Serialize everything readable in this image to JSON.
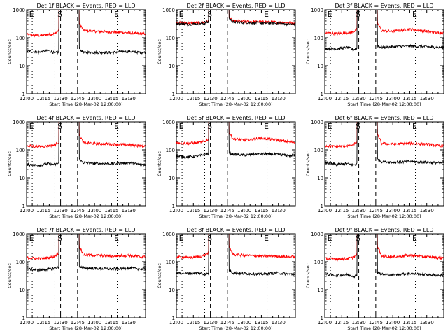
{
  "chart_data": [
    {
      "type": "line",
      "title": "Det 1f BLACK = Events, RED = LLD",
      "xlabel": "Start Time (28-Mar-02 12:00:00)",
      "ylabel": "Counts/sec",
      "yscale": "log",
      "ylim": [
        1,
        1000
      ],
      "xlim": [
        "12:00",
        "13:45"
      ],
      "xticks": [
        "12:00",
        "12:15",
        "12:30",
        "12:45",
        "13:00",
        "13:15",
        "13:30"
      ],
      "yticks": [
        "1",
        "10",
        "100",
        "1000"
      ],
      "markers": [
        {
          "label": "E",
          "time": "12:05",
          "line": "dotted"
        },
        {
          "label": "S",
          "time": "12:30",
          "line": "dashed"
        },
        {
          "label": "E",
          "time": "13:20",
          "line": "dotted"
        }
      ],
      "dashed_lines": [
        "12:30",
        "12:45"
      ],
      "dotted_lines": [
        "12:05",
        "12:25",
        "13:20"
      ],
      "series": [
        {
          "name": "RED",
          "color": "#ff0000",
          "x": [
            "12:00",
            "12:10",
            "12:20",
            "12:25",
            "12:45",
            "12:50",
            "13:00",
            "13:15",
            "13:30",
            "13:40"
          ],
          "y": [
            130,
            120,
            130,
            140,
            400,
            180,
            170,
            160,
            150,
            140
          ]
        },
        {
          "name": "BLACK",
          "color": "#000000",
          "x": [
            "12:00",
            "12:10",
            "12:20",
            "12:25",
            "12:45",
            "12:50",
            "13:00",
            "13:15",
            "13:30",
            "13:40"
          ],
          "y": [
            34,
            30,
            35,
            28,
            45,
            30,
            30,
            30,
            33,
            30
          ]
        }
      ]
    },
    {
      "type": "line",
      "title": "Det 2f BLACK = Events, RED = LLD",
      "xlabel": "Start Time (28-Mar-02 12:00:00)",
      "ylabel": "Counts/sec",
      "yscale": "log",
      "ylim": [
        1,
        1000
      ],
      "xlim": [
        "12:00",
        "13:45"
      ],
      "xticks": [
        "12:00",
        "12:15",
        "12:30",
        "12:45",
        "13:00",
        "13:15",
        "13:30"
      ],
      "yticks": [
        "1",
        "10",
        "100",
        "1000"
      ],
      "markers": [
        {
          "label": "E",
          "time": "12:05",
          "line": "dotted"
        },
        {
          "label": "S",
          "time": "12:30",
          "line": "dashed"
        },
        {
          "label": "E",
          "time": "13:20",
          "line": "dotted"
        }
      ],
      "dashed_lines": [
        "12:30",
        "12:45"
      ],
      "dotted_lines": [
        "12:05",
        "12:25",
        "13:20"
      ],
      "series": [
        {
          "name": "RED",
          "color": "#ff0000",
          "x": [
            "12:00",
            "12:10",
            "12:20",
            "12:25",
            "12:45",
            "12:50",
            "13:00",
            "13:15",
            "13:30",
            "13:40"
          ],
          "y": [
            350,
            340,
            350,
            360,
            600,
            400,
            380,
            370,
            360,
            340
          ]
        },
        {
          "name": "BLACK",
          "color": "#000000",
          "x": [
            "12:00",
            "12:10",
            "12:20",
            "12:25",
            "12:45",
            "12:50",
            "13:00",
            "13:15",
            "13:30",
            "13:40"
          ],
          "y": [
            320,
            310,
            320,
            330,
            550,
            370,
            350,
            340,
            330,
            310
          ]
        }
      ]
    },
    {
      "type": "line",
      "title": "Det 3f BLACK = Events, RED = LLD",
      "xlabel": "Start Time (28-Mar-02 12:00:00)",
      "ylabel": "Counts/sec",
      "yscale": "log",
      "ylim": [
        1,
        1000
      ],
      "xlim": [
        "12:00",
        "13:45"
      ],
      "xticks": [
        "12:00",
        "12:15",
        "12:30",
        "12:45",
        "13:00",
        "13:15",
        "13:30"
      ],
      "yticks": [
        "1",
        "10",
        "100",
        "1000"
      ],
      "markers": [
        {
          "label": "E",
          "time": "12:05",
          "line": "dotted"
        },
        {
          "label": "S",
          "time": "12:30",
          "line": "dashed"
        },
        {
          "label": "E",
          "time": "13:20",
          "line": "dotted"
        }
      ],
      "dashed_lines": [
        "12:30",
        "12:45"
      ],
      "dotted_lines": [
        "12:05",
        "12:25",
        "13:20"
      ],
      "series": [
        {
          "name": "RED",
          "color": "#ff0000",
          "x": [
            "12:00",
            "12:10",
            "12:20",
            "12:25",
            "12:45",
            "12:50",
            "13:00",
            "13:15",
            "13:30",
            "13:40"
          ],
          "y": [
            150,
            140,
            150,
            160,
            400,
            180,
            170,
            200,
            170,
            150
          ]
        },
        {
          "name": "BLACK",
          "color": "#000000",
          "x": [
            "12:00",
            "12:10",
            "12:20",
            "12:25",
            "12:45",
            "12:50",
            "13:00",
            "13:15",
            "13:30",
            "13:40"
          ],
          "y": [
            42,
            40,
            45,
            38,
            55,
            45,
            48,
            50,
            48,
            45
          ]
        }
      ]
    },
    {
      "type": "line",
      "title": "Det 4f BLACK = Events, RED = LLD",
      "xlabel": "Start Time (28-Mar-02 12:00:00)",
      "ylabel": "Counts/sec",
      "yscale": "log",
      "ylim": [
        1,
        1000
      ],
      "xlim": [
        "12:00",
        "13:45"
      ],
      "xticks": [
        "12:00",
        "12:15",
        "12:30",
        "12:45",
        "13:00",
        "13:15",
        "13:30"
      ],
      "yticks": [
        "1",
        "10",
        "100",
        "1000"
      ],
      "markers": [
        {
          "label": "E",
          "time": "12:05",
          "line": "dotted"
        },
        {
          "label": "S",
          "time": "12:30",
          "line": "dashed"
        },
        {
          "label": "E",
          "time": "13:20",
          "line": "dotted"
        }
      ],
      "dashed_lines": [
        "12:30",
        "12:45"
      ],
      "dotted_lines": [
        "12:05",
        "12:25",
        "13:20"
      ],
      "series": [
        {
          "name": "RED",
          "color": "#ff0000",
          "x": [
            "12:00",
            "12:10",
            "12:20",
            "12:25",
            "12:45",
            "12:50",
            "13:00",
            "13:15",
            "13:30",
            "13:40"
          ],
          "y": [
            140,
            130,
            140,
            150,
            400,
            180,
            170,
            160,
            150,
            140
          ]
        },
        {
          "name": "BLACK",
          "color": "#000000",
          "x": [
            "12:00",
            "12:10",
            "12:20",
            "12:25",
            "12:45",
            "12:50",
            "13:00",
            "13:15",
            "13:30",
            "13:40"
          ],
          "y": [
            30,
            28,
            32,
            30,
            50,
            35,
            33,
            32,
            35,
            30
          ]
        }
      ]
    },
    {
      "type": "line",
      "title": "Det 5f BLACK = Events, RED = LLD",
      "xlabel": "Start Time (28-Mar-02 12:00:00)",
      "ylabel": "Counts/sec",
      "yscale": "log",
      "ylim": [
        1,
        1000
      ],
      "xlim": [
        "12:00",
        "13:45"
      ],
      "xticks": [
        "12:00",
        "12:15",
        "12:30",
        "12:45",
        "13:00",
        "13:15",
        "13:30"
      ],
      "yticks": [
        "1",
        "10",
        "100",
        "1000"
      ],
      "markers": [
        {
          "label": "E",
          "time": "12:05",
          "line": "dotted"
        },
        {
          "label": "S",
          "time": "12:30",
          "line": "dashed"
        },
        {
          "label": "E",
          "time": "13:20",
          "line": "dotted"
        }
      ],
      "dashed_lines": [
        "12:30",
        "12:45"
      ],
      "dotted_lines": [
        "12:05",
        "12:25",
        "13:20"
      ],
      "series": [
        {
          "name": "RED",
          "color": "#ff0000",
          "x": [
            "12:00",
            "12:10",
            "12:20",
            "12:25",
            "12:45",
            "12:50",
            "13:00",
            "13:15",
            "13:30",
            "13:40"
          ],
          "y": [
            180,
            170,
            180,
            200,
            450,
            250,
            220,
            260,
            220,
            190
          ]
        },
        {
          "name": "BLACK",
          "color": "#000000",
          "x": [
            "12:00",
            "12:10",
            "12:20",
            "12:25",
            "12:45",
            "12:50",
            "13:00",
            "13:15",
            "13:30",
            "13:40"
          ],
          "y": [
            60,
            55,
            60,
            70,
            80,
            70,
            65,
            72,
            68,
            62
          ]
        }
      ]
    },
    {
      "type": "line",
      "title": "Det 6f BLACK = Events, RED = LLD",
      "xlabel": "Start Time (28-Mar-02 12:00:00)",
      "ylabel": "Counts/sec",
      "yscale": "log",
      "ylim": [
        1,
        1000
      ],
      "xlim": [
        "12:00",
        "13:45"
      ],
      "xticks": [
        "12:00",
        "12:15",
        "12:30",
        "12:45",
        "13:00",
        "13:15",
        "13:30"
      ],
      "yticks": [
        "1",
        "10",
        "100",
        "1000"
      ],
      "markers": [
        {
          "label": "E",
          "time": "12:05",
          "line": "dotted"
        },
        {
          "label": "S",
          "time": "12:30",
          "line": "dashed"
        },
        {
          "label": "E",
          "time": "13:20",
          "line": "dotted"
        }
      ],
      "dashed_lines": [
        "12:30",
        "12:45"
      ],
      "dotted_lines": [
        "12:05",
        "12:25",
        "13:20"
      ],
      "series": [
        {
          "name": "RED",
          "color": "#ff0000",
          "x": [
            "12:00",
            "12:10",
            "12:20",
            "12:25",
            "12:45",
            "12:50",
            "13:00",
            "13:15",
            "13:30",
            "13:40"
          ],
          "y": [
            140,
            130,
            140,
            150,
            400,
            170,
            160,
            170,
            160,
            140
          ]
        },
        {
          "name": "BLACK",
          "color": "#000000",
          "x": [
            "12:00",
            "12:10",
            "12:20",
            "12:25",
            "12:45",
            "12:50",
            "13:00",
            "13:15",
            "13:30",
            "13:40"
          ],
          "y": [
            35,
            30,
            32,
            28,
            50,
            38,
            36,
            38,
            36,
            34
          ]
        }
      ]
    },
    {
      "type": "line",
      "title": "Det 7f BLACK = Events, RED = LLD",
      "xlabel": "Start Time (28-Mar-02 12:00:00)",
      "ylabel": "Counts/sec",
      "yscale": "log",
      "ylim": [
        1,
        1000
      ],
      "xlim": [
        "12:00",
        "13:45"
      ],
      "xticks": [
        "12:00",
        "12:15",
        "12:30",
        "12:45",
        "13:00",
        "13:15",
        "13:30"
      ],
      "yticks": [
        "1",
        "10",
        "100",
        "1000"
      ],
      "markers": [
        {
          "label": "E",
          "time": "12:05",
          "line": "dotted"
        },
        {
          "label": "S",
          "time": "12:30",
          "line": "dashed"
        },
        {
          "label": "E",
          "time": "13:20",
          "line": "dotted"
        }
      ],
      "dashed_lines": [
        "12:30",
        "12:45"
      ],
      "dotted_lines": [
        "12:05",
        "12:25",
        "13:20"
      ],
      "series": [
        {
          "name": "RED",
          "color": "#ff0000",
          "x": [
            "12:00",
            "12:10",
            "12:20",
            "12:25",
            "12:45",
            "12:50",
            "13:00",
            "13:15",
            "13:30",
            "13:40"
          ],
          "y": [
            140,
            130,
            140,
            160,
            400,
            180,
            170,
            160,
            170,
            150
          ]
        },
        {
          "name": "BLACK",
          "color": "#000000",
          "x": [
            "12:00",
            "12:10",
            "12:20",
            "12:25",
            "12:45",
            "12:50",
            "13:00",
            "13:15",
            "13:30",
            "13:40"
          ],
          "y": [
            55,
            50,
            55,
            60,
            70,
            60,
            58,
            55,
            60,
            55
          ]
        }
      ]
    },
    {
      "type": "line",
      "title": "Det 8f BLACK = Events, RED = LLD",
      "xlabel": "Start Time (28-Mar-02 12:00:00)",
      "ylabel": "Counts/sec",
      "yscale": "log",
      "ylim": [
        1,
        1000
      ],
      "xlim": [
        "12:00",
        "13:45"
      ],
      "xticks": [
        "12:00",
        "12:15",
        "12:30",
        "12:45",
        "13:00",
        "13:15",
        "13:30"
      ],
      "yticks": [
        "1",
        "10",
        "100",
        "1000"
      ],
      "markers": [
        {
          "label": "E",
          "time": "12:05",
          "line": "dotted"
        },
        {
          "label": "S",
          "time": "12:30",
          "line": "dashed"
        },
        {
          "label": "E",
          "time": "13:20",
          "line": "dotted"
        }
      ],
      "dashed_lines": [
        "12:30",
        "12:45"
      ],
      "dotted_lines": [
        "12:05",
        "12:25",
        "13:20"
      ],
      "series": [
        {
          "name": "RED",
          "color": "#ff0000",
          "x": [
            "12:00",
            "12:10",
            "12:20",
            "12:25",
            "12:45",
            "12:50",
            "13:00",
            "13:15",
            "13:30",
            "13:40"
          ],
          "y": [
            150,
            140,
            150,
            170,
            400,
            180,
            170,
            160,
            160,
            150
          ]
        },
        {
          "name": "BLACK",
          "color": "#000000",
          "x": [
            "12:00",
            "12:10",
            "12:20",
            "12:25",
            "12:45",
            "12:50",
            "13:00",
            "13:15",
            "13:30",
            "13:40"
          ],
          "y": [
            40,
            38,
            40,
            35,
            55,
            40,
            38,
            36,
            40,
            36
          ]
        }
      ]
    },
    {
      "type": "line",
      "title": "Det 9f BLACK = Events, RED = LLD",
      "xlabel": "Start Time (28-Mar-02 12:00:00)",
      "ylabel": "Counts/sec",
      "yscale": "log",
      "ylim": [
        1,
        1000
      ],
      "xlim": [
        "12:00",
        "13:45"
      ],
      "xticks": [
        "12:00",
        "12:15",
        "12:30",
        "12:45",
        "13:00",
        "13:15",
        "13:30"
      ],
      "yticks": [
        "1",
        "10",
        "100",
        "1000"
      ],
      "markers": [
        {
          "label": "E",
          "time": "12:05",
          "line": "dotted"
        },
        {
          "label": "S",
          "time": "12:30",
          "line": "dashed"
        },
        {
          "label": "E",
          "time": "13:20",
          "line": "dotted"
        }
      ],
      "dashed_lines": [
        "12:30",
        "12:45"
      ],
      "dotted_lines": [
        "12:05",
        "12:25",
        "13:20"
      ],
      "series": [
        {
          "name": "RED",
          "color": "#ff0000",
          "x": [
            "12:00",
            "12:10",
            "12:20",
            "12:25",
            "12:45",
            "12:50",
            "13:00",
            "13:15",
            "13:30",
            "13:40"
          ],
          "y": [
            130,
            125,
            130,
            140,
            400,
            160,
            150,
            170,
            150,
            140
          ]
        },
        {
          "name": "BLACK",
          "color": "#000000",
          "x": [
            "12:00",
            "12:10",
            "12:20",
            "12:25",
            "12:45",
            "12:50",
            "13:00",
            "13:15",
            "13:30",
            "13:40"
          ],
          "y": [
            36,
            32,
            35,
            30,
            45,
            36,
            34,
            38,
            35,
            33
          ]
        }
      ]
    }
  ]
}
